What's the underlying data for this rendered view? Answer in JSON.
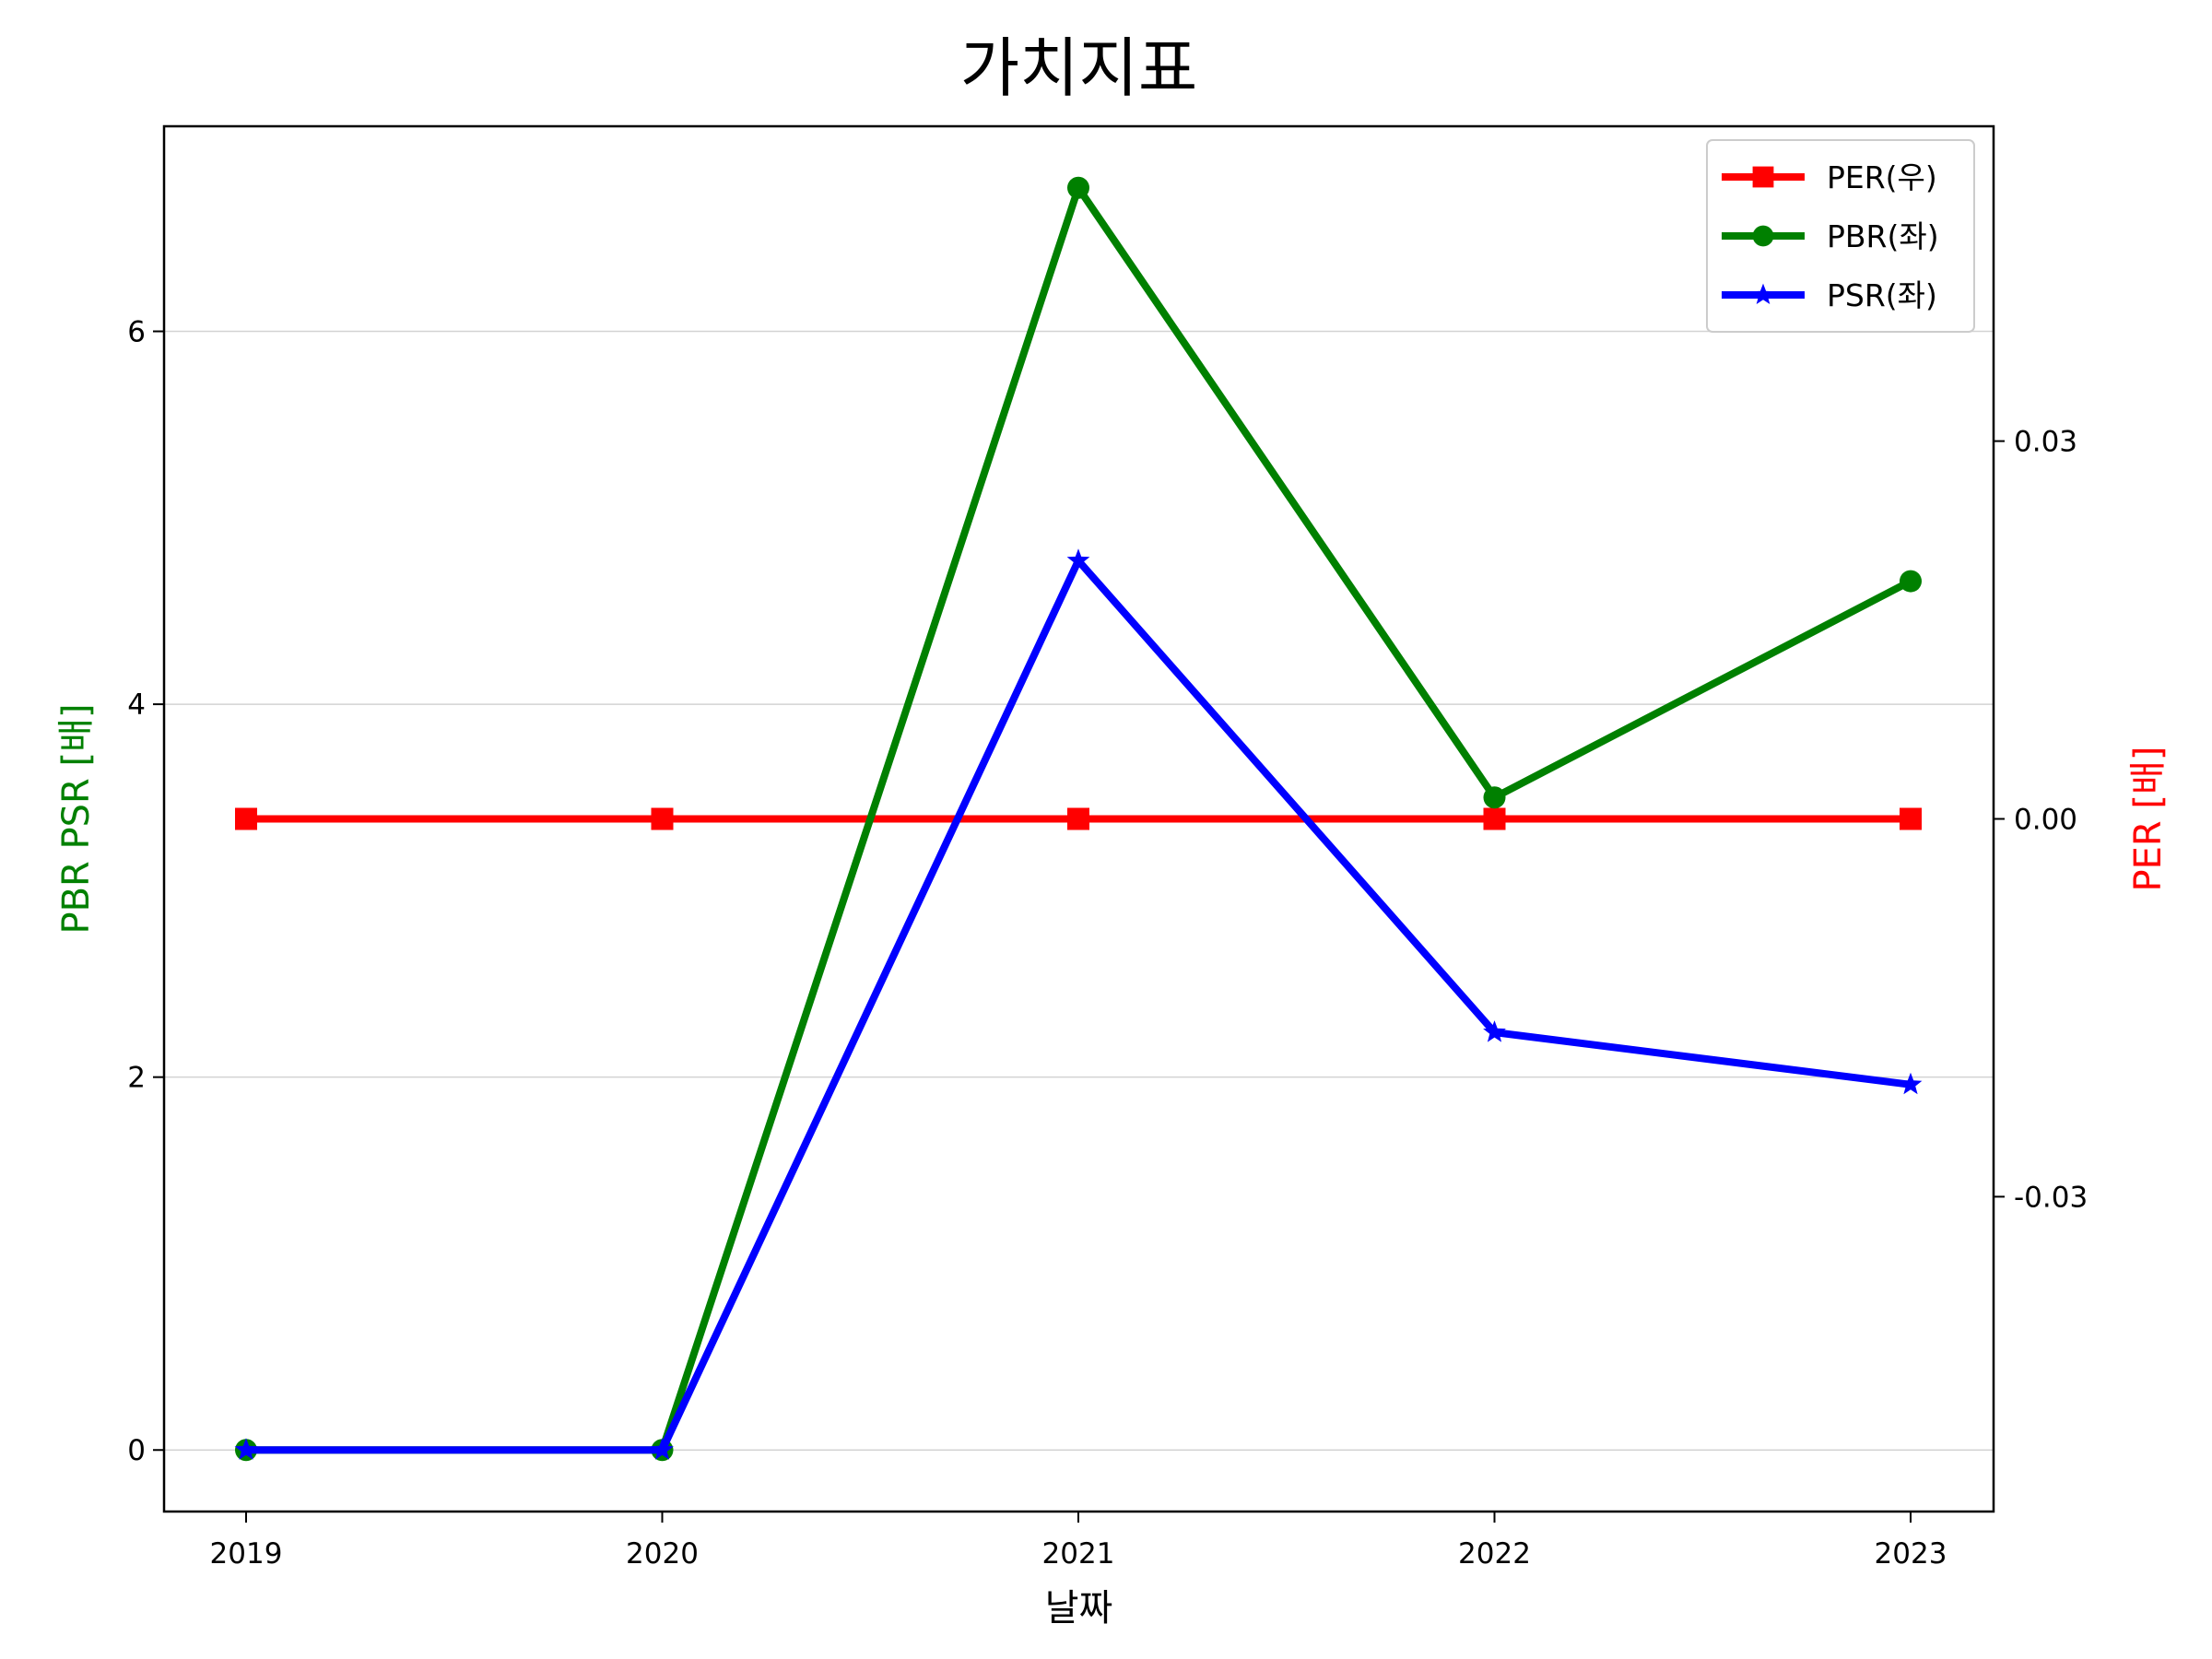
{
  "chart_data": {
    "type": "line",
    "title": "가치지표",
    "xlabel": "날짜",
    "ylabel_left": "PBR PSR [배]",
    "ylabel_right": "PER [배]",
    "categories": [
      "2019",
      "2020",
      "2021",
      "2022",
      "2023"
    ],
    "left_axis": {
      "ylim": [
        -0.33,
        7.1
      ],
      "ticks": [
        0,
        2,
        4,
        6
      ],
      "tick_labels": [
        "0",
        "2",
        "4",
        "6"
      ],
      "grid": true
    },
    "right_axis": {
      "ylim": [
        -0.055,
        0.055
      ],
      "ticks": [
        -0.03,
        0.0,
        0.03
      ],
      "tick_labels": [
        "-0.03",
        "0.00",
        "0.03"
      ]
    },
    "series": [
      {
        "name": "PER(우)",
        "axis": "right",
        "color": "#ff0000",
        "marker": "square",
        "values": [
          0,
          0,
          0,
          0,
          0
        ]
      },
      {
        "name": "PBR(좌)",
        "axis": "left",
        "color": "#008000",
        "marker": "circle",
        "values": [
          0,
          0,
          6.77,
          3.5,
          4.66
        ]
      },
      {
        "name": "PSR(좌)",
        "axis": "left",
        "color": "#0000ff",
        "marker": "star",
        "values": [
          0,
          0,
          4.77,
          2.24,
          1.96
        ]
      }
    ],
    "legend_position": "top-right"
  }
}
